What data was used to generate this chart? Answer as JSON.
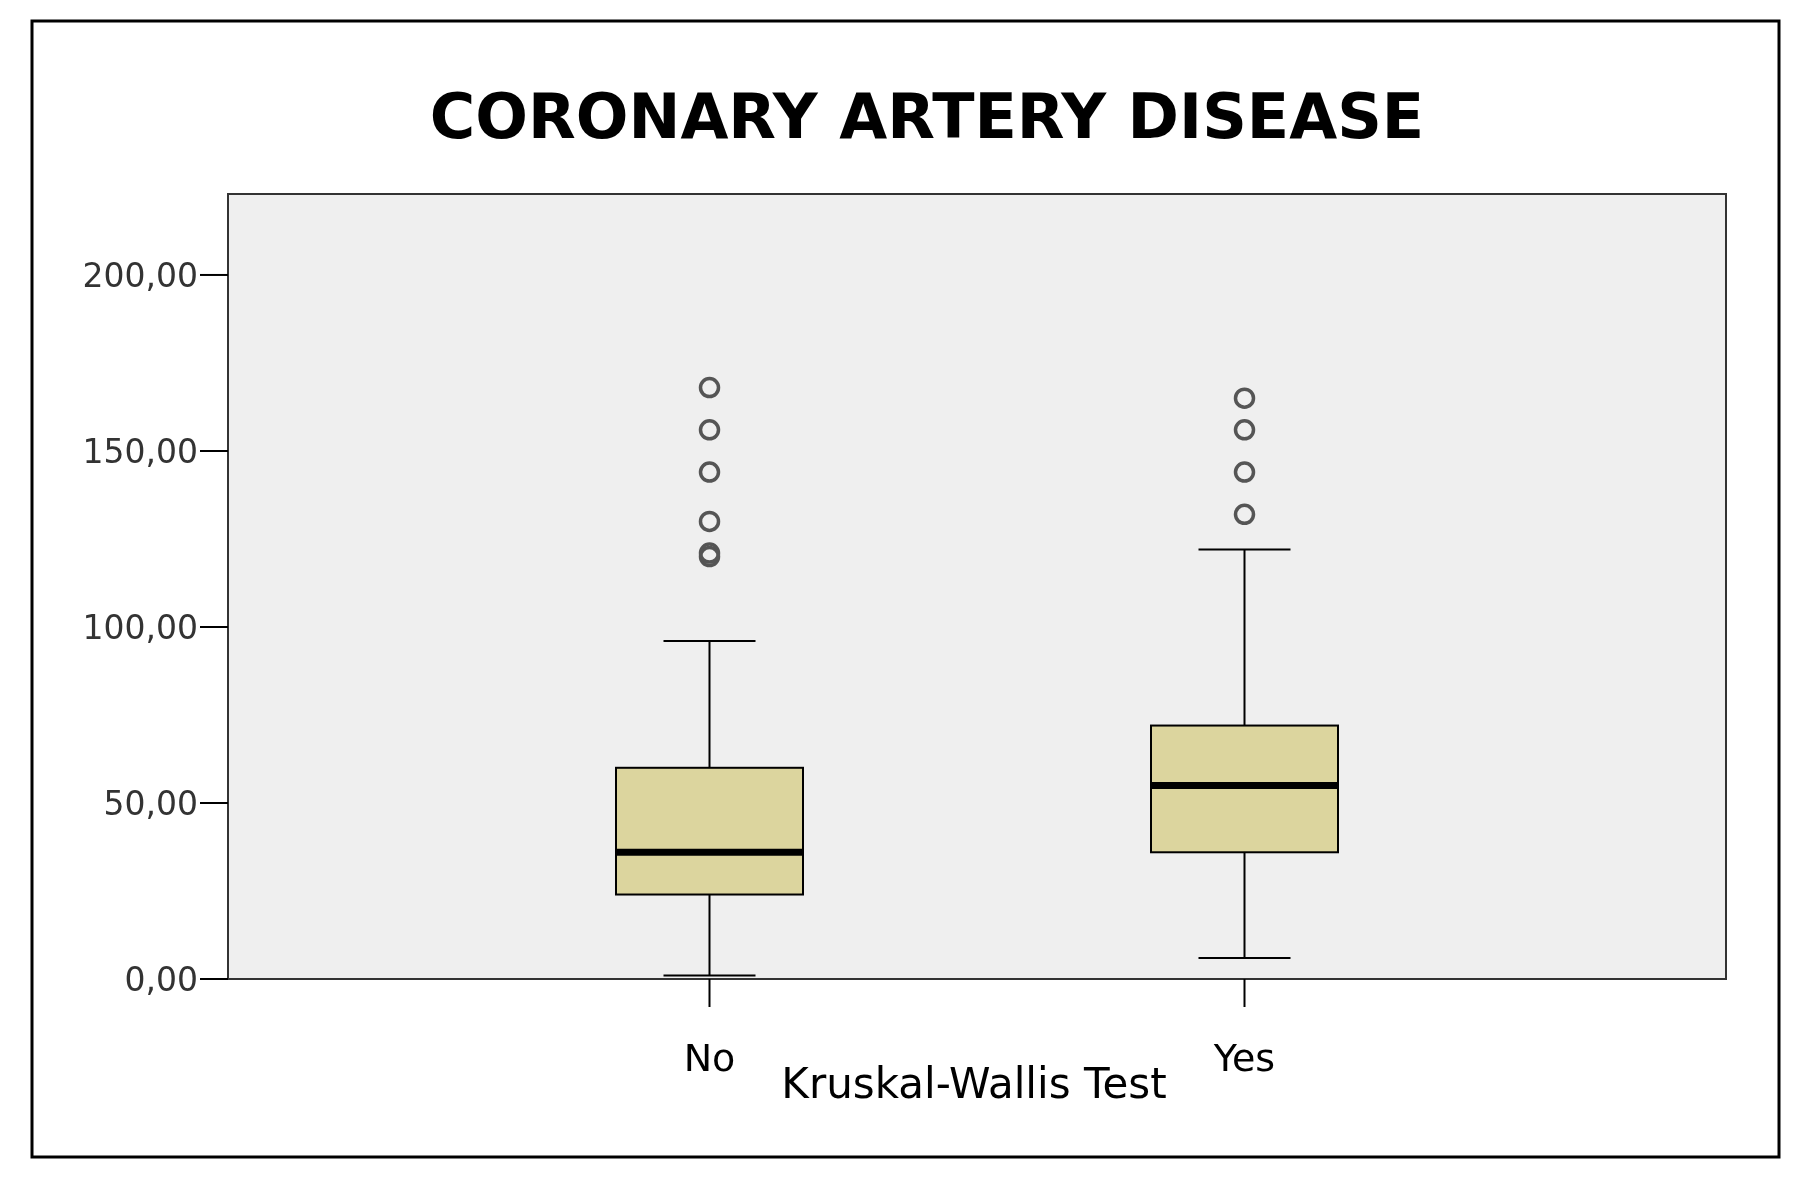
{
  "chart_data": {
    "type": "box",
    "title": "CORONARY ARTERY DISEASE",
    "xlabel": "Kruskal-Wallis Test",
    "categories": [
      "No",
      "Yes"
    ],
    "color": "#dcd59e",
    "ylim": [
      0,
      223
    ],
    "yticks": [
      {
        "value": 0,
        "label": "0,00"
      },
      {
        "value": 50,
        "label": "50,00"
      },
      {
        "value": 100,
        "label": "100,00"
      },
      {
        "value": 150,
        "label": "150,00"
      },
      {
        "value": 200,
        "label": "200,00"
      }
    ],
    "boxes": [
      {
        "low": 1,
        "q1": 24,
        "median": 36,
        "q3": 60,
        "high": 96,
        "outliers": [
          120,
          121,
          130,
          144,
          156,
          168
        ]
      },
      {
        "low": 6,
        "q1": 36,
        "median": 55,
        "q3": 72,
        "high": 122,
        "outliers": [
          132,
          144,
          156,
          165
        ]
      }
    ]
  }
}
